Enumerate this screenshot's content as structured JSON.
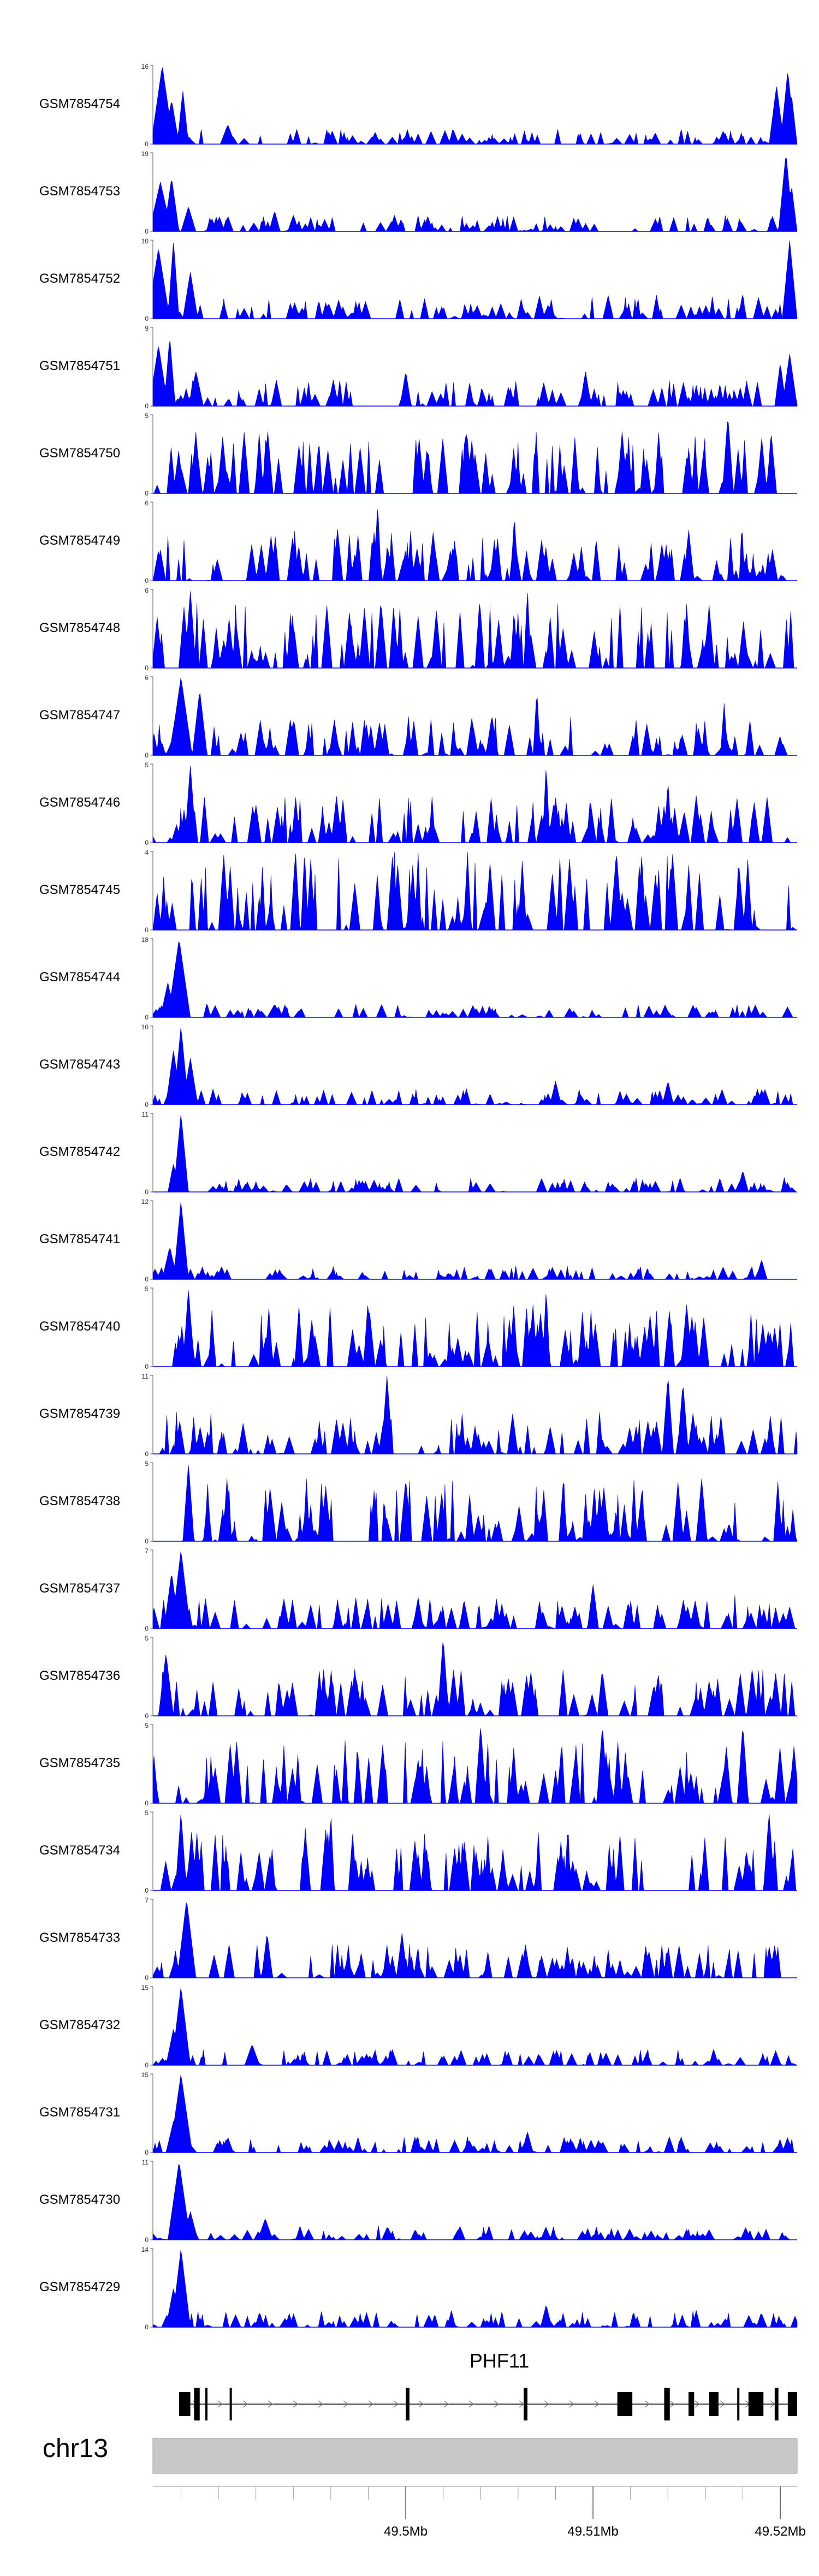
{
  "chart_data": {
    "type": "area",
    "title": "",
    "color": "#0000ff",
    "x_range": [
      49.4865,
      49.5209
    ],
    "x_ticks": [
      {
        "value": 49.5,
        "label": "49.5Mb"
      },
      {
        "value": 49.51,
        "label": "49.51Mb"
      },
      {
        "value": 49.52,
        "label": "49.52Mb"
      }
    ],
    "chromosome": "chr13",
    "gene": {
      "name": "PHF11",
      "start": 49.4879,
      "end": 49.5209,
      "strand": "+"
    },
    "exons": [
      [
        49.4879,
        49.4885
      ],
      [
        49.4887,
        49.489
      ],
      [
        49.4893,
        49.4894
      ],
      [
        49.4906,
        49.4907
      ],
      [
        49.5,
        49.5002
      ],
      [
        49.5063,
        49.5065
      ],
      [
        49.5113,
        49.5121
      ],
      [
        49.5138,
        49.5141
      ],
      [
        49.5151,
        49.5154
      ],
      [
        49.5162,
        49.5167
      ],
      [
        49.5177,
        49.5178
      ],
      [
        49.5183,
        49.5191
      ],
      [
        49.5197,
        49.5199
      ],
      [
        49.5204,
        49.5209
      ]
    ],
    "series": [
      {
        "name": "GSM7854754",
        "ymax": "16",
        "ylim": [
          0,
          16
        ],
        "seed": 754,
        "peaks": [
          [
            49.487,
            16,
            0.0006
          ],
          [
            49.4875,
            9,
            0.0004
          ],
          [
            49.4881,
            11,
            0.0003
          ],
          [
            49.4905,
            4,
            0.0004
          ],
          [
            49.5198,
            12,
            0.0004
          ],
          [
            49.5204,
            15,
            0.0004
          ],
          [
            49.5206,
            10,
            0.0003
          ]
        ],
        "noise": [
          0,
          3
        ]
      },
      {
        "name": "GSM7854753",
        "ymax": "19",
        "ylim": [
          0,
          19
        ],
        "seed": 753,
        "peaks": [
          [
            49.4869,
            12,
            0.0006
          ],
          [
            49.4875,
            13,
            0.0004
          ],
          [
            49.4884,
            6,
            0.0004
          ],
          [
            49.493,
            5,
            0.0003
          ],
          [
            49.494,
            4,
            0.0003
          ],
          [
            49.5203,
            19,
            0.0004
          ],
          [
            49.5206,
            11,
            0.0003
          ]
        ],
        "noise": [
          0,
          4
        ]
      },
      {
        "name": "GSM7854752",
        "ymax": "10",
        "ylim": [
          0,
          10
        ],
        "seed": 752,
        "peaks": [
          [
            49.4868,
            9,
            0.0006
          ],
          [
            49.4876,
            10,
            0.0003
          ],
          [
            49.4885,
            6,
            0.0004
          ],
          [
            49.5205,
            10,
            0.0004
          ]
        ],
        "noise": [
          0,
          3
        ]
      },
      {
        "name": "GSM7854751",
        "ymax": "9",
        "ylim": [
          0,
          9
        ],
        "seed": 751,
        "peaks": [
          [
            49.4868,
            7,
            0.0005
          ],
          [
            49.4874,
            8,
            0.0003
          ],
          [
            49.4888,
            4,
            0.0004
          ],
          [
            49.5,
            4,
            0.0003
          ],
          [
            49.5096,
            4,
            0.0003
          ],
          [
            49.52,
            5,
            0.0003
          ],
          [
            49.5205,
            6,
            0.0004
          ]
        ],
        "noise": [
          0,
          3
        ]
      },
      {
        "name": "GSM7854750",
        "ymax": "5",
        "ylim": [
          0,
          5
        ],
        "seed": 750,
        "peaks": [
          [
            49.5172,
            5,
            0.0003
          ],
          [
            49.5195,
            4,
            0.0002
          ]
        ],
        "noise": [
          0,
          4
        ]
      },
      {
        "name": "GSM7854749",
        "ymax": "6",
        "ylim": [
          0,
          6
        ],
        "seed": 749,
        "peaks": [
          [
            49.4985,
            6,
            0.0002
          ],
          [
            49.5058,
            5,
            0.0002
          ]
        ],
        "noise": [
          0,
          4
        ]
      },
      {
        "name": "GSM7854748",
        "ymax": "6",
        "ylim": [
          0,
          6
        ],
        "seed": 748,
        "peaks": [
          [
            49.4885,
            6,
            0.0003
          ],
          [
            49.5065,
            6,
            0.0002
          ],
          [
            49.515,
            5,
            0.0002
          ]
        ],
        "noise": [
          0,
          5
        ]
      },
      {
        "name": "GSM7854747",
        "ymax": "6",
        "ylim": [
          0,
          6
        ],
        "seed": 747,
        "peaks": [
          [
            49.488,
            6,
            0.0006
          ],
          [
            49.489,
            5,
            0.0004
          ],
          [
            49.507,
            5,
            0.0002
          ],
          [
            49.517,
            4,
            0.0002
          ]
        ],
        "noise": [
          0,
          3
        ]
      },
      {
        "name": "GSM7854746",
        "ymax": "5",
        "ylim": [
          0,
          5
        ],
        "seed": 746,
        "peaks": [
          [
            49.4885,
            5,
            0.0003
          ],
          [
            49.5075,
            5,
            0.0002
          ],
          [
            49.514,
            4,
            0.0002
          ]
        ],
        "noise": [
          0,
          3
        ]
      },
      {
        "name": "GSM7854745",
        "ymax": "4",
        "ylim": [
          0,
          4
        ],
        "seed": 745,
        "peaks": [
          [
            49.4946,
            4,
            0.0002
          ],
          [
            49.5033,
            4,
            0.0002
          ],
          [
            49.5126,
            4,
            0.0002
          ]
        ],
        "noise": [
          0,
          4
        ]
      },
      {
        "name": "GSM7854744",
        "ymax": "18",
        "ylim": [
          0,
          18
        ],
        "seed": 744,
        "peaks": [
          [
            49.4879,
            18,
            0.0006
          ],
          [
            49.4873,
            8,
            0.0004
          ],
          [
            49.493,
            3,
            0.0004
          ]
        ],
        "noise": [
          0,
          3
        ]
      },
      {
        "name": "GSM7854743",
        "ymax": "10",
        "ylim": [
          0,
          10
        ],
        "seed": 743,
        "peaks": [
          [
            49.4876,
            7,
            0.0004
          ],
          [
            49.488,
            10,
            0.0004
          ],
          [
            49.4885,
            6,
            0.0004
          ],
          [
            49.508,
            3,
            0.0003
          ],
          [
            49.514,
            3,
            0.0003
          ]
        ],
        "noise": [
          0,
          2
        ]
      },
      {
        "name": "GSM7854742",
        "ymax": "11",
        "ylim": [
          0,
          11
        ],
        "seed": 742,
        "peaks": [
          [
            49.488,
            11,
            0.0004
          ],
          [
            49.4876,
            4,
            0.0003
          ],
          [
            49.518,
            3,
            0.0003
          ]
        ],
        "noise": [
          0,
          2
        ]
      },
      {
        "name": "GSM7854741",
        "ymax": "12",
        "ylim": [
          0,
          12
        ],
        "seed": 741,
        "peaks": [
          [
            49.488,
            12,
            0.0004
          ],
          [
            49.4874,
            5,
            0.0004
          ],
          [
            49.519,
            3,
            0.0003
          ]
        ],
        "noise": [
          0,
          2
        ]
      },
      {
        "name": "GSM7854740",
        "ymax": "5",
        "ylim": [
          0,
          5
        ],
        "seed": 740,
        "peaks": [
          [
            49.4884,
            5,
            0.0003
          ],
          [
            49.5075,
            5,
            0.0002
          ],
          [
            49.515,
            4,
            0.0003
          ]
        ],
        "noise": [
          0,
          4
        ]
      },
      {
        "name": "GSM7854739",
        "ymax": "11",
        "ylim": [
          0,
          11
        ],
        "seed": 739,
        "peaks": [
          [
            49.499,
            11,
            0.0003
          ],
          [
            49.514,
            11,
            0.0003
          ],
          [
            49.5148,
            10,
            0.0003
          ]
        ],
        "noise": [
          4,
          6
        ]
      },
      {
        "name": "GSM7854738",
        "ymax": "5",
        "ylim": [
          0,
          5
        ],
        "seed": 738,
        "peaks": [
          [
            49.4884,
            5,
            0.0003
          ],
          [
            49.5,
            4,
            0.0003
          ],
          [
            49.5158,
            4,
            0.0003
          ]
        ],
        "noise": [
          0,
          4
        ]
      },
      {
        "name": "GSM7854737",
        "ymax": "7",
        "ylim": [
          0,
          7
        ],
        "seed": 737,
        "peaks": [
          [
            49.488,
            7,
            0.0005
          ],
          [
            49.4875,
            5,
            0.0004
          ],
          [
            49.51,
            4,
            0.0003
          ]
        ],
        "noise": [
          0,
          3
        ]
      },
      {
        "name": "GSM7854736",
        "ymax": "5",
        "ylim": [
          0,
          5
        ],
        "seed": 736,
        "peaks": [
          [
            49.502,
            5,
            0.0003
          ],
          [
            49.4872,
            4,
            0.0004
          ],
          [
            49.5185,
            3,
            0.0003
          ]
        ],
        "noise": [
          0,
          3
        ]
      },
      {
        "name": "GSM7854735",
        "ymax": "5",
        "ylim": [
          0,
          5
        ],
        "seed": 735,
        "peaks": [
          [
            49.504,
            5,
            0.0003
          ],
          [
            49.5105,
            5,
            0.0003
          ],
          [
            49.518,
            5,
            0.0003
          ]
        ],
        "noise": [
          0,
          4
        ]
      },
      {
        "name": "GSM7854734",
        "ymax": "5",
        "ylim": [
          0,
          5
        ],
        "seed": 734,
        "peaks": [
          [
            49.488,
            5,
            0.0003
          ],
          [
            49.496,
            5,
            0.0002
          ],
          [
            49.5194,
            5,
            0.0003
          ]
        ],
        "noise": [
          0,
          4
        ]
      },
      {
        "name": "GSM7854733",
        "ymax": "7",
        "ylim": [
          0,
          7
        ],
        "seed": 733,
        "peaks": [
          [
            49.4883,
            7,
            0.0005
          ],
          [
            49.4926,
            4,
            0.0003
          ],
          [
            49.4998,
            4,
            0.0003
          ]
        ],
        "noise": [
          0,
          3
        ]
      },
      {
        "name": "GSM7854732",
        "ymax": "15",
        "ylim": [
          0,
          15
        ],
        "seed": 732,
        "peaks": [
          [
            49.488,
            15,
            0.0005
          ],
          [
            49.4876,
            7,
            0.0004
          ],
          [
            49.4918,
            4,
            0.0004
          ]
        ],
        "noise": [
          0,
          3
        ]
      },
      {
        "name": "GSM7854731",
        "ymax": "15",
        "ylim": [
          0,
          15
        ],
        "seed": 731,
        "peaks": [
          [
            49.488,
            15,
            0.0006
          ],
          [
            49.4876,
            6,
            0.0004
          ],
          [
            49.5065,
            4,
            0.0003
          ]
        ],
        "noise": [
          0,
          3
        ]
      },
      {
        "name": "GSM7854730",
        "ymax": "11",
        "ylim": [
          0,
          11
        ],
        "seed": 730,
        "peaks": [
          [
            49.4879,
            11,
            0.0006
          ],
          [
            49.4885,
            4,
            0.0004
          ],
          [
            49.4925,
            3,
            0.0004
          ]
        ],
        "noise": [
          0,
          2
        ]
      },
      {
        "name": "GSM7854729",
        "ymax": "14",
        "ylim": [
          0,
          14
        ],
        "seed": 729,
        "peaks": [
          [
            49.488,
            14,
            0.0005
          ],
          [
            49.4876,
            7,
            0.0004
          ],
          [
            49.5075,
            4,
            0.0003
          ]
        ],
        "noise": [
          0,
          3
        ]
      }
    ]
  }
}
